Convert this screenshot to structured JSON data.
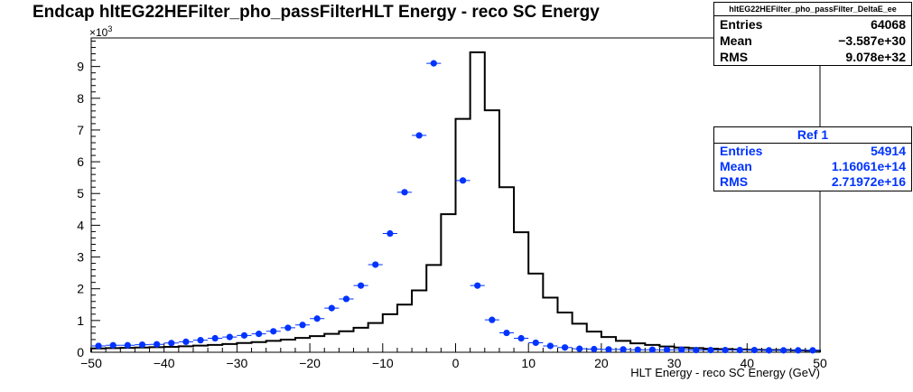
{
  "page": {
    "title": "Endcap hltEG22HEFilter_pho_passFilterHLT Energy - reco SC Energy"
  },
  "stats_main": {
    "name": "hltEG22HEFilter_pho_passFilter_DeltaE_ee",
    "entries_label": "Entries",
    "entries": "64068",
    "mean_label": "Mean",
    "mean": "−3.587e+30",
    "rms_label": "RMS",
    "rms": "9.078e+32",
    "color": "#000000"
  },
  "stats_ref": {
    "name": "Ref 1",
    "entries_label": "Entries",
    "entries": "54914",
    "mean_label": "Mean",
    "mean": "1.16061e+14",
    "rms_label": "RMS",
    "rms": "2.71972e+16",
    "color": "#0033ff"
  },
  "chart_data": {
    "type": "histogram",
    "xlabel": "HLT Energy - reco SC Energy (GeV)",
    "ylabel": "",
    "y_multiplier_label": "×10",
    "y_multiplier_exp": "3",
    "xlim": [
      -50,
      50
    ],
    "ylim": [
      0,
      9.9
    ],
    "x_ticks": [
      -50,
      -40,
      -30,
      -20,
      -10,
      0,
      10,
      20,
      30,
      40,
      50
    ],
    "y_ticks": [
      0,
      1,
      2,
      3,
      4,
      5,
      6,
      7,
      8,
      9
    ],
    "bin_edges": [
      -50,
      -48,
      -46,
      -44,
      -42,
      -40,
      -38,
      -36,
      -34,
      -32,
      -30,
      -28,
      -26,
      -24,
      -22,
      -20,
      -18,
      -16,
      -14,
      -12,
      -10,
      -8,
      -6,
      -4,
      -2,
      0,
      2,
      4,
      6,
      8,
      10,
      12,
      14,
      16,
      18,
      20,
      22,
      24,
      26,
      28,
      30,
      32,
      34,
      36,
      38,
      40,
      42,
      44,
      46,
      48,
      50
    ],
    "series": [
      {
        "style": "step",
        "color": "#000000",
        "values": [
          0.12,
          0.13,
          0.14,
          0.15,
          0.16,
          0.17,
          0.19,
          0.21,
          0.23,
          0.26,
          0.29,
          0.32,
          0.36,
          0.4,
          0.45,
          0.51,
          0.58,
          0.66,
          0.77,
          0.92,
          1.2,
          1.5,
          1.95,
          2.75,
          4.35,
          7.35,
          9.45,
          7.62,
          5.2,
          3.78,
          2.48,
          1.72,
          1.25,
          0.9,
          0.65,
          0.48,
          0.36,
          0.28,
          0.23,
          0.18,
          0.15,
          0.13,
          0.11,
          0.1,
          0.09,
          0.08,
          0.07,
          0.07,
          0.06,
          0.05
        ]
      },
      {
        "name": "Ref 1",
        "style": "markers",
        "color": "#0033ff",
        "values": [
          0.2,
          0.22,
          0.22,
          0.24,
          0.25,
          0.29,
          0.33,
          0.38,
          0.44,
          0.48,
          0.53,
          0.58,
          0.66,
          0.77,
          0.86,
          1.06,
          1.39,
          1.68,
          2.1,
          2.76,
          3.74,
          5.04,
          6.83,
          9.1,
          null,
          5.41,
          2.1,
          1.02,
          0.61,
          0.44,
          0.3,
          0.2,
          0.15,
          0.11,
          0.1,
          0.09,
          0.09,
          0.08,
          0.08,
          0.08,
          0.08,
          0.07,
          0.07,
          0.07,
          0.07,
          0.07,
          0.06,
          0.06,
          0.06,
          0.06
        ]
      }
    ]
  }
}
